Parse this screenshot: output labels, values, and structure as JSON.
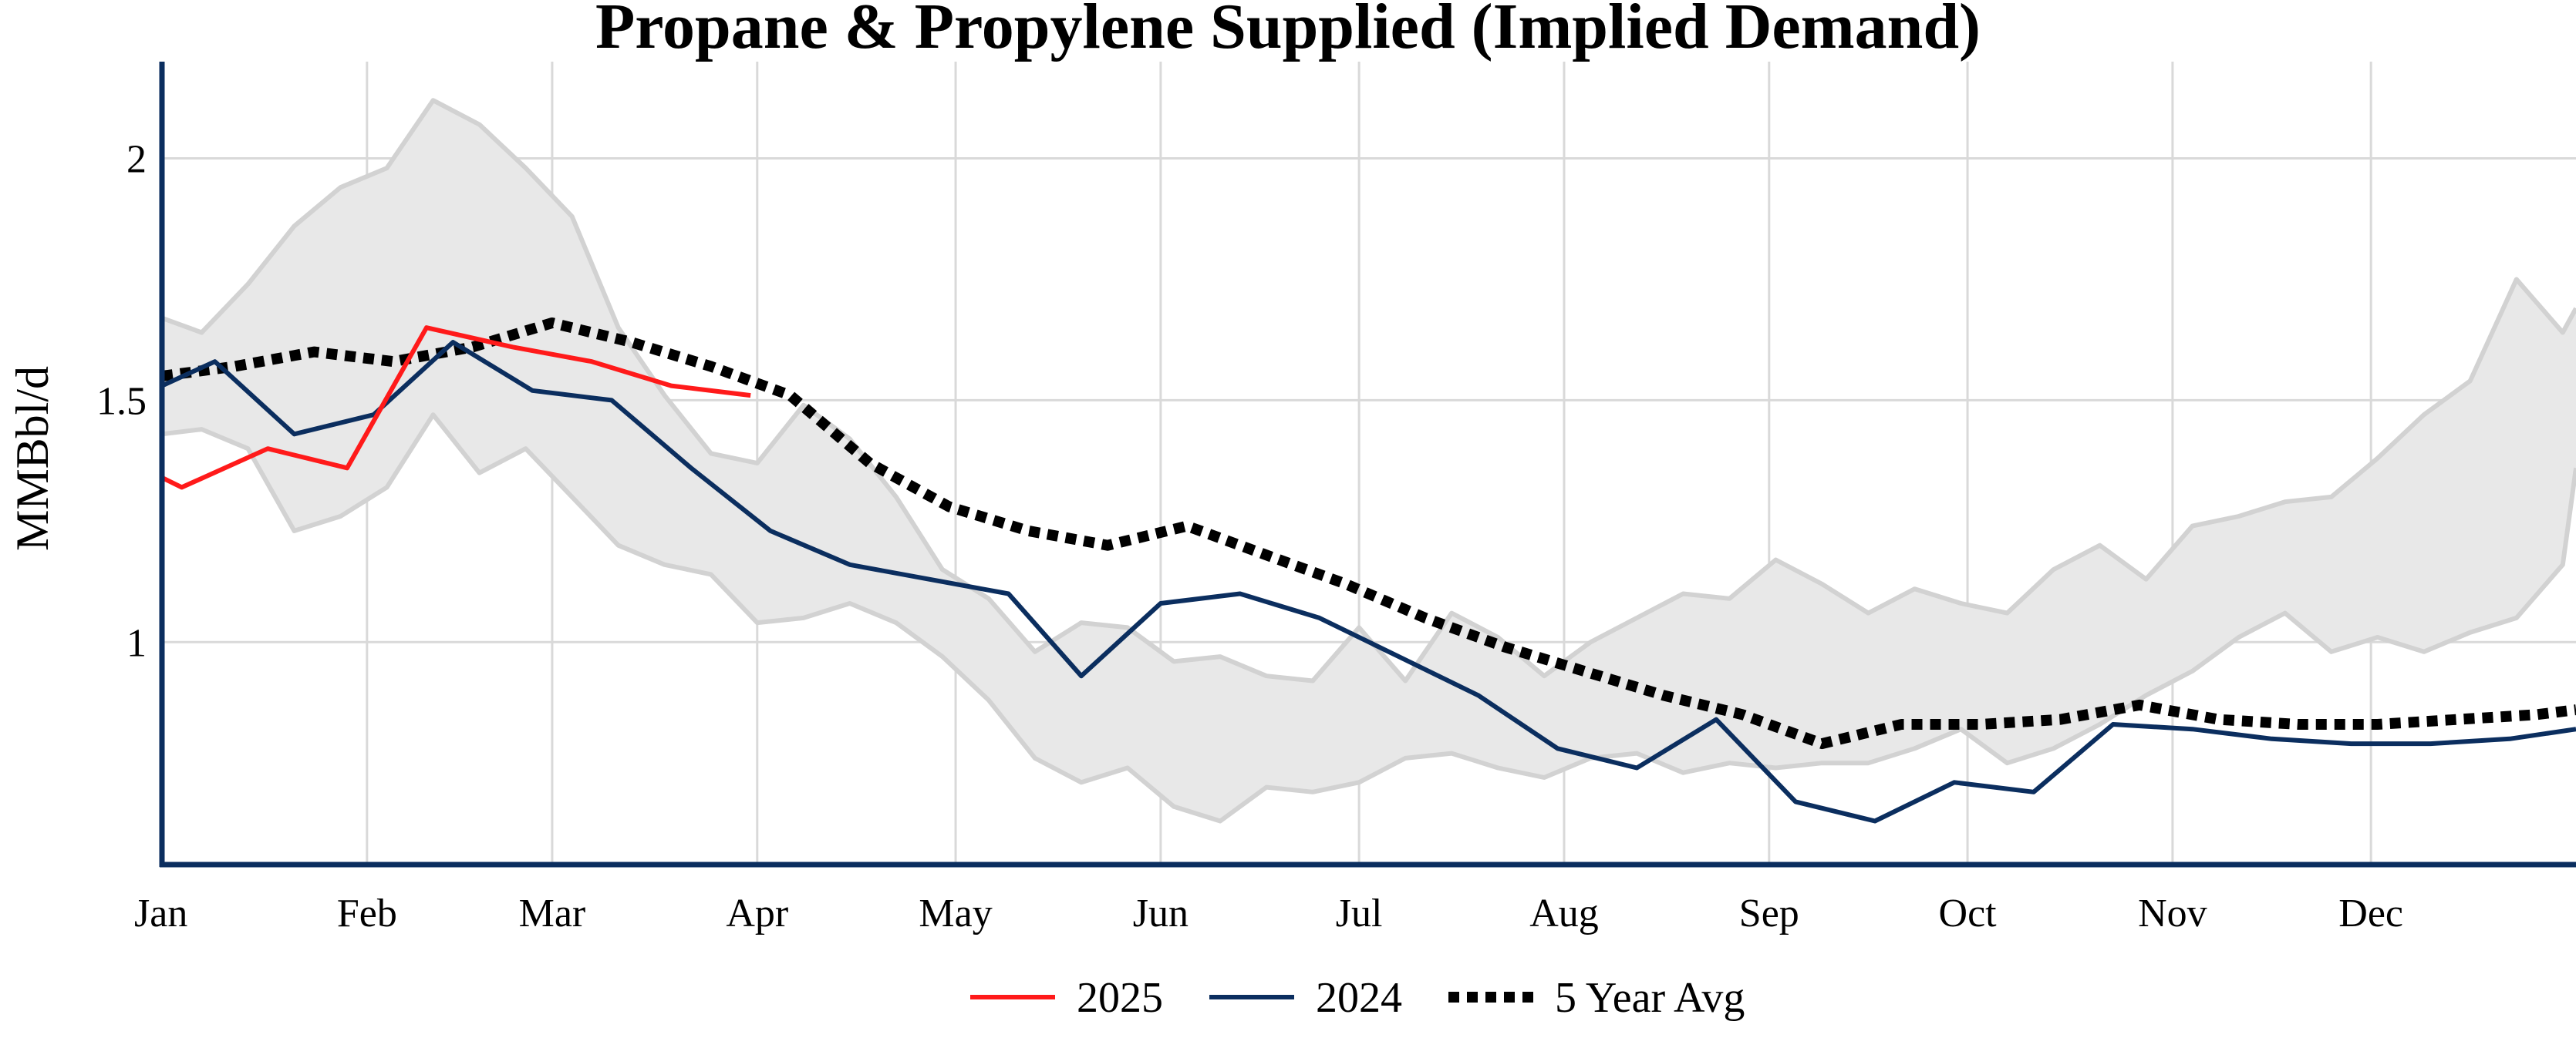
{
  "chart_data": {
    "type": "line",
    "title": "Propane & Propylene Supplied (Implied Demand)",
    "xlabel": "",
    "ylabel": "MMBbl/d",
    "x_tick_labels": [
      "Jan",
      "Feb",
      "Mar",
      "Apr",
      "May",
      "Jun",
      "Jul",
      "Aug",
      "Sep",
      "Oct",
      "Nov",
      "Dec"
    ],
    "x_domain_days": [
      1,
      366
    ],
    "y_ticks": [
      1,
      1.5,
      2
    ],
    "y_tick_labels": [
      "1",
      "1.5",
      "2"
    ],
    "ylim": [
      0.54,
      2.2
    ],
    "grid": true,
    "legend_position": "bottom",
    "colors": {
      "2025": "#ff1a1a",
      "2024": "#0b2e5f",
      "5 Year Avg": "#000000",
      "band_fill": "#e8e8e8",
      "band_edge": "#d2d2d2",
      "grid": "#d9d9d9",
      "axis": "#0b2e5f"
    },
    "range_band": {
      "upper": [
        [
          1,
          1.67
        ],
        [
          7,
          1.64
        ],
        [
          14,
          1.74
        ],
        [
          21,
          1.86
        ],
        [
          28,
          1.94
        ],
        [
          35,
          1.98
        ],
        [
          42,
          2.12
        ],
        [
          49,
          2.07
        ],
        [
          56,
          1.98
        ],
        [
          63,
          1.88
        ],
        [
          70,
          1.65
        ],
        [
          77,
          1.51
        ],
        [
          84,
          1.39
        ],
        [
          91,
          1.37
        ],
        [
          98,
          1.49
        ],
        [
          105,
          1.42
        ],
        [
          112,
          1.3
        ],
        [
          119,
          1.15
        ],
        [
          126,
          1.09
        ],
        [
          133,
          0.98
        ],
        [
          140,
          1.04
        ],
        [
          147,
          1.03
        ],
        [
          154,
          0.96
        ],
        [
          161,
          0.97
        ],
        [
          168,
          0.93
        ],
        [
          175,
          0.92
        ],
        [
          182,
          1.03
        ],
        [
          189,
          0.92
        ],
        [
          196,
          1.06
        ],
        [
          203,
          1.01
        ],
        [
          210,
          0.93
        ],
        [
          217,
          1.0
        ],
        [
          224,
          1.05
        ],
        [
          231,
          1.1
        ],
        [
          238,
          1.09
        ],
        [
          245,
          1.17
        ],
        [
          252,
          1.12
        ],
        [
          259,
          1.06
        ],
        [
          266,
          1.11
        ],
        [
          273,
          1.08
        ],
        [
          280,
          1.06
        ],
        [
          287,
          1.15
        ],
        [
          294,
          1.2
        ],
        [
          301,
          1.13
        ],
        [
          308,
          1.24
        ],
        [
          315,
          1.26
        ],
        [
          322,
          1.29
        ],
        [
          329,
          1.3
        ],
        [
          336,
          1.38
        ],
        [
          343,
          1.47
        ],
        [
          350,
          1.54
        ],
        [
          357,
          1.75
        ],
        [
          364,
          1.64
        ],
        [
          366,
          1.69
        ]
      ],
      "lower": [
        [
          1,
          1.43
        ],
        [
          7,
          1.44
        ],
        [
          14,
          1.4
        ],
        [
          21,
          1.23
        ],
        [
          28,
          1.26
        ],
        [
          35,
          1.32
        ],
        [
          42,
          1.47
        ],
        [
          49,
          1.35
        ],
        [
          56,
          1.4
        ],
        [
          63,
          1.3
        ],
        [
          70,
          1.2
        ],
        [
          77,
          1.16
        ],
        [
          84,
          1.14
        ],
        [
          91,
          1.04
        ],
        [
          98,
          1.05
        ],
        [
          105,
          1.08
        ],
        [
          112,
          1.04
        ],
        [
          119,
          0.97
        ],
        [
          126,
          0.88
        ],
        [
          133,
          0.76
        ],
        [
          140,
          0.71
        ],
        [
          147,
          0.74
        ],
        [
          154,
          0.66
        ],
        [
          161,
          0.63
        ],
        [
          168,
          0.7
        ],
        [
          175,
          0.69
        ],
        [
          182,
          0.71
        ],
        [
          189,
          0.76
        ],
        [
          196,
          0.77
        ],
        [
          203,
          0.74
        ],
        [
          210,
          0.72
        ],
        [
          217,
          0.76
        ],
        [
          224,
          0.77
        ],
        [
          231,
          0.73
        ],
        [
          238,
          0.75
        ],
        [
          245,
          0.74
        ],
        [
          252,
          0.75
        ],
        [
          259,
          0.75
        ],
        [
          266,
          0.78
        ],
        [
          273,
          0.82
        ],
        [
          280,
          0.75
        ],
        [
          287,
          0.78
        ],
        [
          294,
          0.83
        ],
        [
          301,
          0.89
        ],
        [
          308,
          0.94
        ],
        [
          315,
          1.01
        ],
        [
          322,
          1.06
        ],
        [
          329,
          0.98
        ],
        [
          336,
          1.01
        ],
        [
          343,
          0.98
        ],
        [
          350,
          1.02
        ],
        [
          357,
          1.05
        ],
        [
          364,
          1.16
        ],
        [
          366,
          1.36
        ]
      ]
    },
    "series": [
      {
        "name": "2025",
        "style": "solid",
        "points": [
          [
            1,
            1.34
          ],
          [
            4,
            1.32
          ],
          [
            17,
            1.4
          ],
          [
            29,
            1.36
          ],
          [
            41,
            1.65
          ],
          [
            54,
            1.61
          ],
          [
            66,
            1.58
          ],
          [
            78,
            1.53
          ],
          [
            90,
            1.51
          ]
        ]
      },
      {
        "name": "2024",
        "style": "solid",
        "points": [
          [
            1,
            1.53
          ],
          [
            9,
            1.58
          ],
          [
            21,
            1.43
          ],
          [
            33,
            1.47
          ],
          [
            45,
            1.62
          ],
          [
            57,
            1.52
          ],
          [
            69,
            1.5
          ],
          [
            81,
            1.36
          ],
          [
            93,
            1.23
          ],
          [
            105,
            1.16
          ],
          [
            117,
            1.13
          ],
          [
            129,
            1.1
          ],
          [
            140,
            0.93
          ],
          [
            152,
            1.08
          ],
          [
            164,
            1.1
          ],
          [
            176,
            1.05
          ],
          [
            188,
            0.97
          ],
          [
            200,
            0.89
          ],
          [
            212,
            0.78
          ],
          [
            224,
            0.74
          ],
          [
            236,
            0.84
          ],
          [
            248,
            0.67
          ],
          [
            260,
            0.63
          ],
          [
            272,
            0.71
          ],
          [
            284,
            0.69
          ],
          [
            296,
            0.83
          ],
          [
            308,
            0.82
          ],
          [
            320,
            0.8
          ],
          [
            332,
            0.79
          ],
          [
            344,
            0.79
          ],
          [
            356,
            0.8
          ],
          [
            366,
            0.82
          ]
        ]
      },
      {
        "name": "5 Year Avg",
        "style": "dotted",
        "points": [
          [
            1,
            1.55
          ],
          [
            12,
            1.57
          ],
          [
            24,
            1.6
          ],
          [
            36,
            1.58
          ],
          [
            48,
            1.61
          ],
          [
            60,
            1.66
          ],
          [
            72,
            1.62
          ],
          [
            84,
            1.57
          ],
          [
            96,
            1.51
          ],
          [
            108,
            1.37
          ],
          [
            120,
            1.28
          ],
          [
            132,
            1.23
          ],
          [
            144,
            1.2
          ],
          [
            156,
            1.24
          ],
          [
            168,
            1.18
          ],
          [
            180,
            1.12
          ],
          [
            192,
            1.05
          ],
          [
            204,
            0.99
          ],
          [
            216,
            0.94
          ],
          [
            228,
            0.89
          ],
          [
            240,
            0.85
          ],
          [
            252,
            0.79
          ],
          [
            264,
            0.83
          ],
          [
            276,
            0.83
          ],
          [
            288,
            0.84
          ],
          [
            300,
            0.87
          ],
          [
            312,
            0.84
          ],
          [
            324,
            0.83
          ],
          [
            336,
            0.83
          ],
          [
            348,
            0.84
          ],
          [
            360,
            0.85
          ],
          [
            366,
            0.86
          ]
        ]
      }
    ]
  }
}
